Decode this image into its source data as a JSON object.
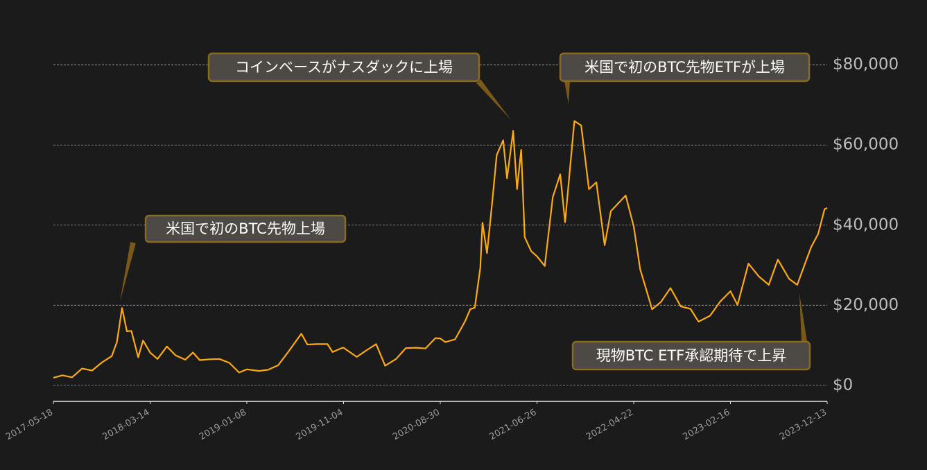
{
  "chart_data": {
    "type": "line",
    "color": "#ffaa0f",
    "x": [
      "2017-05-18",
      "2017-06-15",
      "2017-07-15",
      "2017-08-15",
      "2017-09-15",
      "2017-10-15",
      "2017-11-15",
      "2017-12-01",
      "2017-12-17",
      "2018-01-01",
      "2018-01-15",
      "2018-02-05",
      "2018-02-20",
      "2018-03-14",
      "2018-04-06",
      "2018-05-05",
      "2018-06-01",
      "2018-07-01",
      "2018-07-25",
      "2018-08-15",
      "2018-09-15",
      "2018-10-15",
      "2018-11-15",
      "2018-12-15",
      "2019-01-08",
      "2019-02-15",
      "2019-03-15",
      "2019-04-15",
      "2019-05-15",
      "2019-06-26",
      "2019-07-15",
      "2019-08-15",
      "2019-09-15",
      "2019-10-01",
      "2019-10-26",
      "2019-11-04",
      "2019-12-15",
      "2020-01-15",
      "2020-02-13",
      "2020-03-12",
      "2020-04-15",
      "2020-05-15",
      "2020-06-15",
      "2020-07-15",
      "2020-08-15",
      "2020-08-30",
      "2020-09-15",
      "2020-10-15",
      "2020-11-15",
      "2020-12-01",
      "2020-12-15",
      "2021-01-01",
      "2021-01-08",
      "2021-01-22",
      "2021-02-08",
      "2021-02-21",
      "2021-03-13",
      "2021-03-25",
      "2021-04-13",
      "2021-04-25",
      "2021-05-08",
      "2021-05-19",
      "2021-06-08",
      "2021-06-26",
      "2021-07-20",
      "2021-08-14",
      "2021-09-06",
      "2021-09-21",
      "2021-10-20",
      "2021-11-10",
      "2021-12-04",
      "2021-12-27",
      "2022-01-22",
      "2022-02-10",
      "2022-03-28",
      "2022-04-22",
      "2022-05-12",
      "2022-06-18",
      "2022-07-15",
      "2022-08-14",
      "2022-09-15",
      "2022-10-15",
      "2022-11-09",
      "2022-12-15",
      "2023-01-15",
      "2023-02-16",
      "2023-03-10",
      "2023-04-13",
      "2023-05-15",
      "2023-06-15",
      "2023-07-13",
      "2023-08-17",
      "2023-09-11",
      "2023-10-24",
      "2023-11-15",
      "2023-12-05",
      "2023-12-13"
    ],
    "values": [
      1900,
      2500,
      2000,
      4200,
      3700,
      5700,
      7300,
      10800,
      19300,
      13500,
      13600,
      7000,
      11200,
      8200,
      6600,
      9700,
      7500,
      6400,
      8200,
      6300,
      6500,
      6600,
      5600,
      3200,
      4000,
      3600,
      3900,
      5000,
      8200,
      12900,
      10200,
      10300,
      10300,
      8300,
      9200,
      9400,
      7100,
      8800,
      10300,
      4900,
      6600,
      9300,
      9400,
      9200,
      11800,
      11700,
      10800,
      11500,
      16000,
      19000,
      19400,
      29300,
      40600,
      33000,
      46400,
      57500,
      61200,
      51700,
      63500,
      49000,
      58800,
      37000,
      33500,
      32200,
      29800,
      47000,
      52700,
      40700,
      66000,
      64900,
      49000,
      50700,
      35000,
      43500,
      47400,
      39700,
      29000,
      19000,
      20800,
      24300,
      19700,
      19100,
      15900,
      17400,
      20900,
      23500,
      20100,
      30400,
      27200,
      25100,
      31400,
      26600,
      25100,
      34500,
      37800,
      44000,
      44300
    ],
    "xlim": [
      "2017-05-18",
      "2023-12-13"
    ],
    "xticks": [
      "2017-05-18",
      "2018-03-14",
      "2019-01-08",
      "2019-11-04",
      "2020-08-30",
      "2021-06-26",
      "2022-04-22",
      "2023-02-16",
      "2023-12-13"
    ],
    "ylim": [
      -4000,
      86000
    ],
    "yticks": [
      {
        "value": 0,
        "label": "$0"
      },
      {
        "value": 20000,
        "label": "$20,000"
      },
      {
        "value": 40000,
        "label": "$40,000"
      },
      {
        "value": 60000,
        "label": "$60,000"
      },
      {
        "value": 80000,
        "label": "$80,000"
      }
    ],
    "grid": true,
    "annotations": [
      "米国で初のBTC先物上場",
      "コインベースがナスダックに上場",
      "米国で初のBTC先物ETFが上場",
      "現物BTC ETF承認期待で上昇"
    ]
  }
}
